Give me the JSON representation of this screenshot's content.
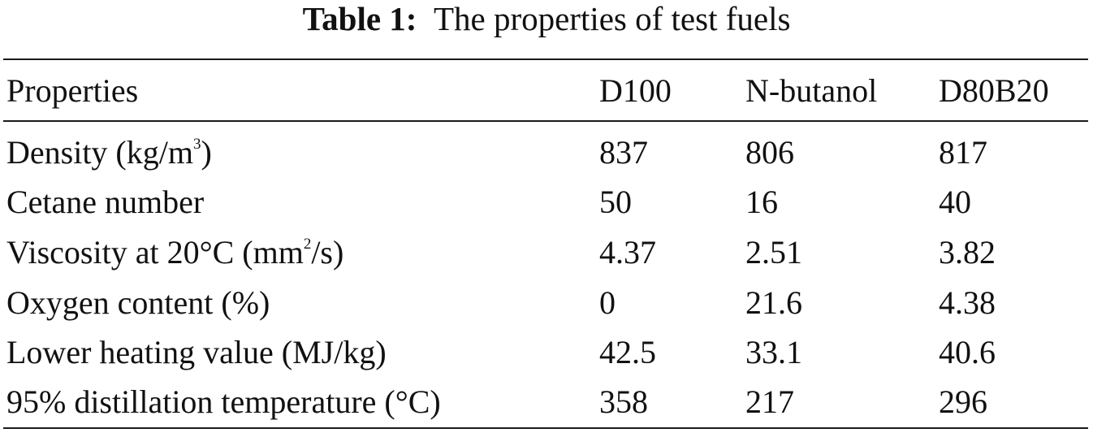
{
  "caption": {
    "label": "Table 1:",
    "text": "The properties of test fuels"
  },
  "header": [
    "Properties",
    "D100",
    "N-butanol",
    "D80B20"
  ],
  "rows": [
    {
      "property": {
        "main": "Density (kg/m",
        "sup": "3",
        "tail": ")"
      },
      "values": [
        "837",
        "806",
        "817"
      ]
    },
    {
      "property": {
        "main": "Cetane number",
        "sup": "",
        "tail": ""
      },
      "values": [
        "50",
        "16",
        "40"
      ]
    },
    {
      "property": {
        "main": "Viscosity at 20°C (mm",
        "sup": "2",
        "tail": "/s)"
      },
      "values": [
        "4.37",
        "2.51",
        "3.82"
      ]
    },
    {
      "property": {
        "main": "Oxygen content (%)",
        "sup": "",
        "tail": ""
      },
      "values": [
        "0",
        "21.6",
        "4.38"
      ]
    },
    {
      "property": {
        "main": "Lower heating value (MJ/kg)",
        "sup": "",
        "tail": ""
      },
      "values": [
        "42.5",
        "33.1",
        "40.6"
      ]
    },
    {
      "property": {
        "main": "95% distillation temperature (°C)",
        "sup": "",
        "tail": ""
      },
      "values": [
        "358",
        "217",
        "296"
      ]
    }
  ]
}
